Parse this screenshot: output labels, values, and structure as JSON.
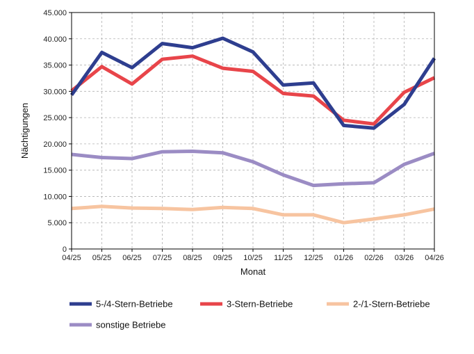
{
  "chart_data": {
    "type": "line",
    "title": "",
    "xlabel": "Monat",
    "ylabel": "Nächtigungen",
    "categories": [
      "04/25",
      "05/25",
      "06/25",
      "07/25",
      "08/25",
      "09/25",
      "10/25",
      "11/25",
      "12/25",
      "01/26",
      "02/26",
      "03/26",
      "04/26"
    ],
    "ylim": [
      0,
      45000
    ],
    "yticks": [
      0,
      5000,
      10000,
      15000,
      20000,
      25000,
      30000,
      35000,
      40000,
      45000
    ],
    "ytick_labels": [
      "0",
      "5.000",
      "10.000",
      "15.000",
      "20.000",
      "25.000",
      "30.000",
      "35.000",
      "40.000",
      "45.000"
    ],
    "grid": true,
    "legend_position": "bottom",
    "series": [
      {
        "name": "5-/4-Stern-Betriebe",
        "color": "#2E3E8F",
        "values": [
          29300,
          37400,
          34500,
          39100,
          38300,
          40100,
          37500,
          31200,
          31600,
          23500,
          23000,
          27500,
          36300
        ]
      },
      {
        "name": "3-Stern-Betriebe",
        "color": "#E8454A",
        "values": [
          30100,
          34700,
          31400,
          36100,
          36700,
          34400,
          33800,
          29600,
          29100,
          24500,
          23800,
          29800,
          32600
        ]
      },
      {
        "name": "2-/1-Stern-Betriebe",
        "color": "#F7C4A0",
        "values": [
          7700,
          8100,
          7800,
          7700,
          7500,
          7900,
          7700,
          6500,
          6500,
          5000,
          5700,
          6500,
          7600
        ]
      },
      {
        "name": "sonstige Betriebe",
        "color": "#9B8CC4",
        "values": [
          18000,
          17400,
          17200,
          18500,
          18600,
          18300,
          16600,
          14100,
          12100,
          12400,
          12600,
          16100,
          18200
        ]
      }
    ]
  }
}
